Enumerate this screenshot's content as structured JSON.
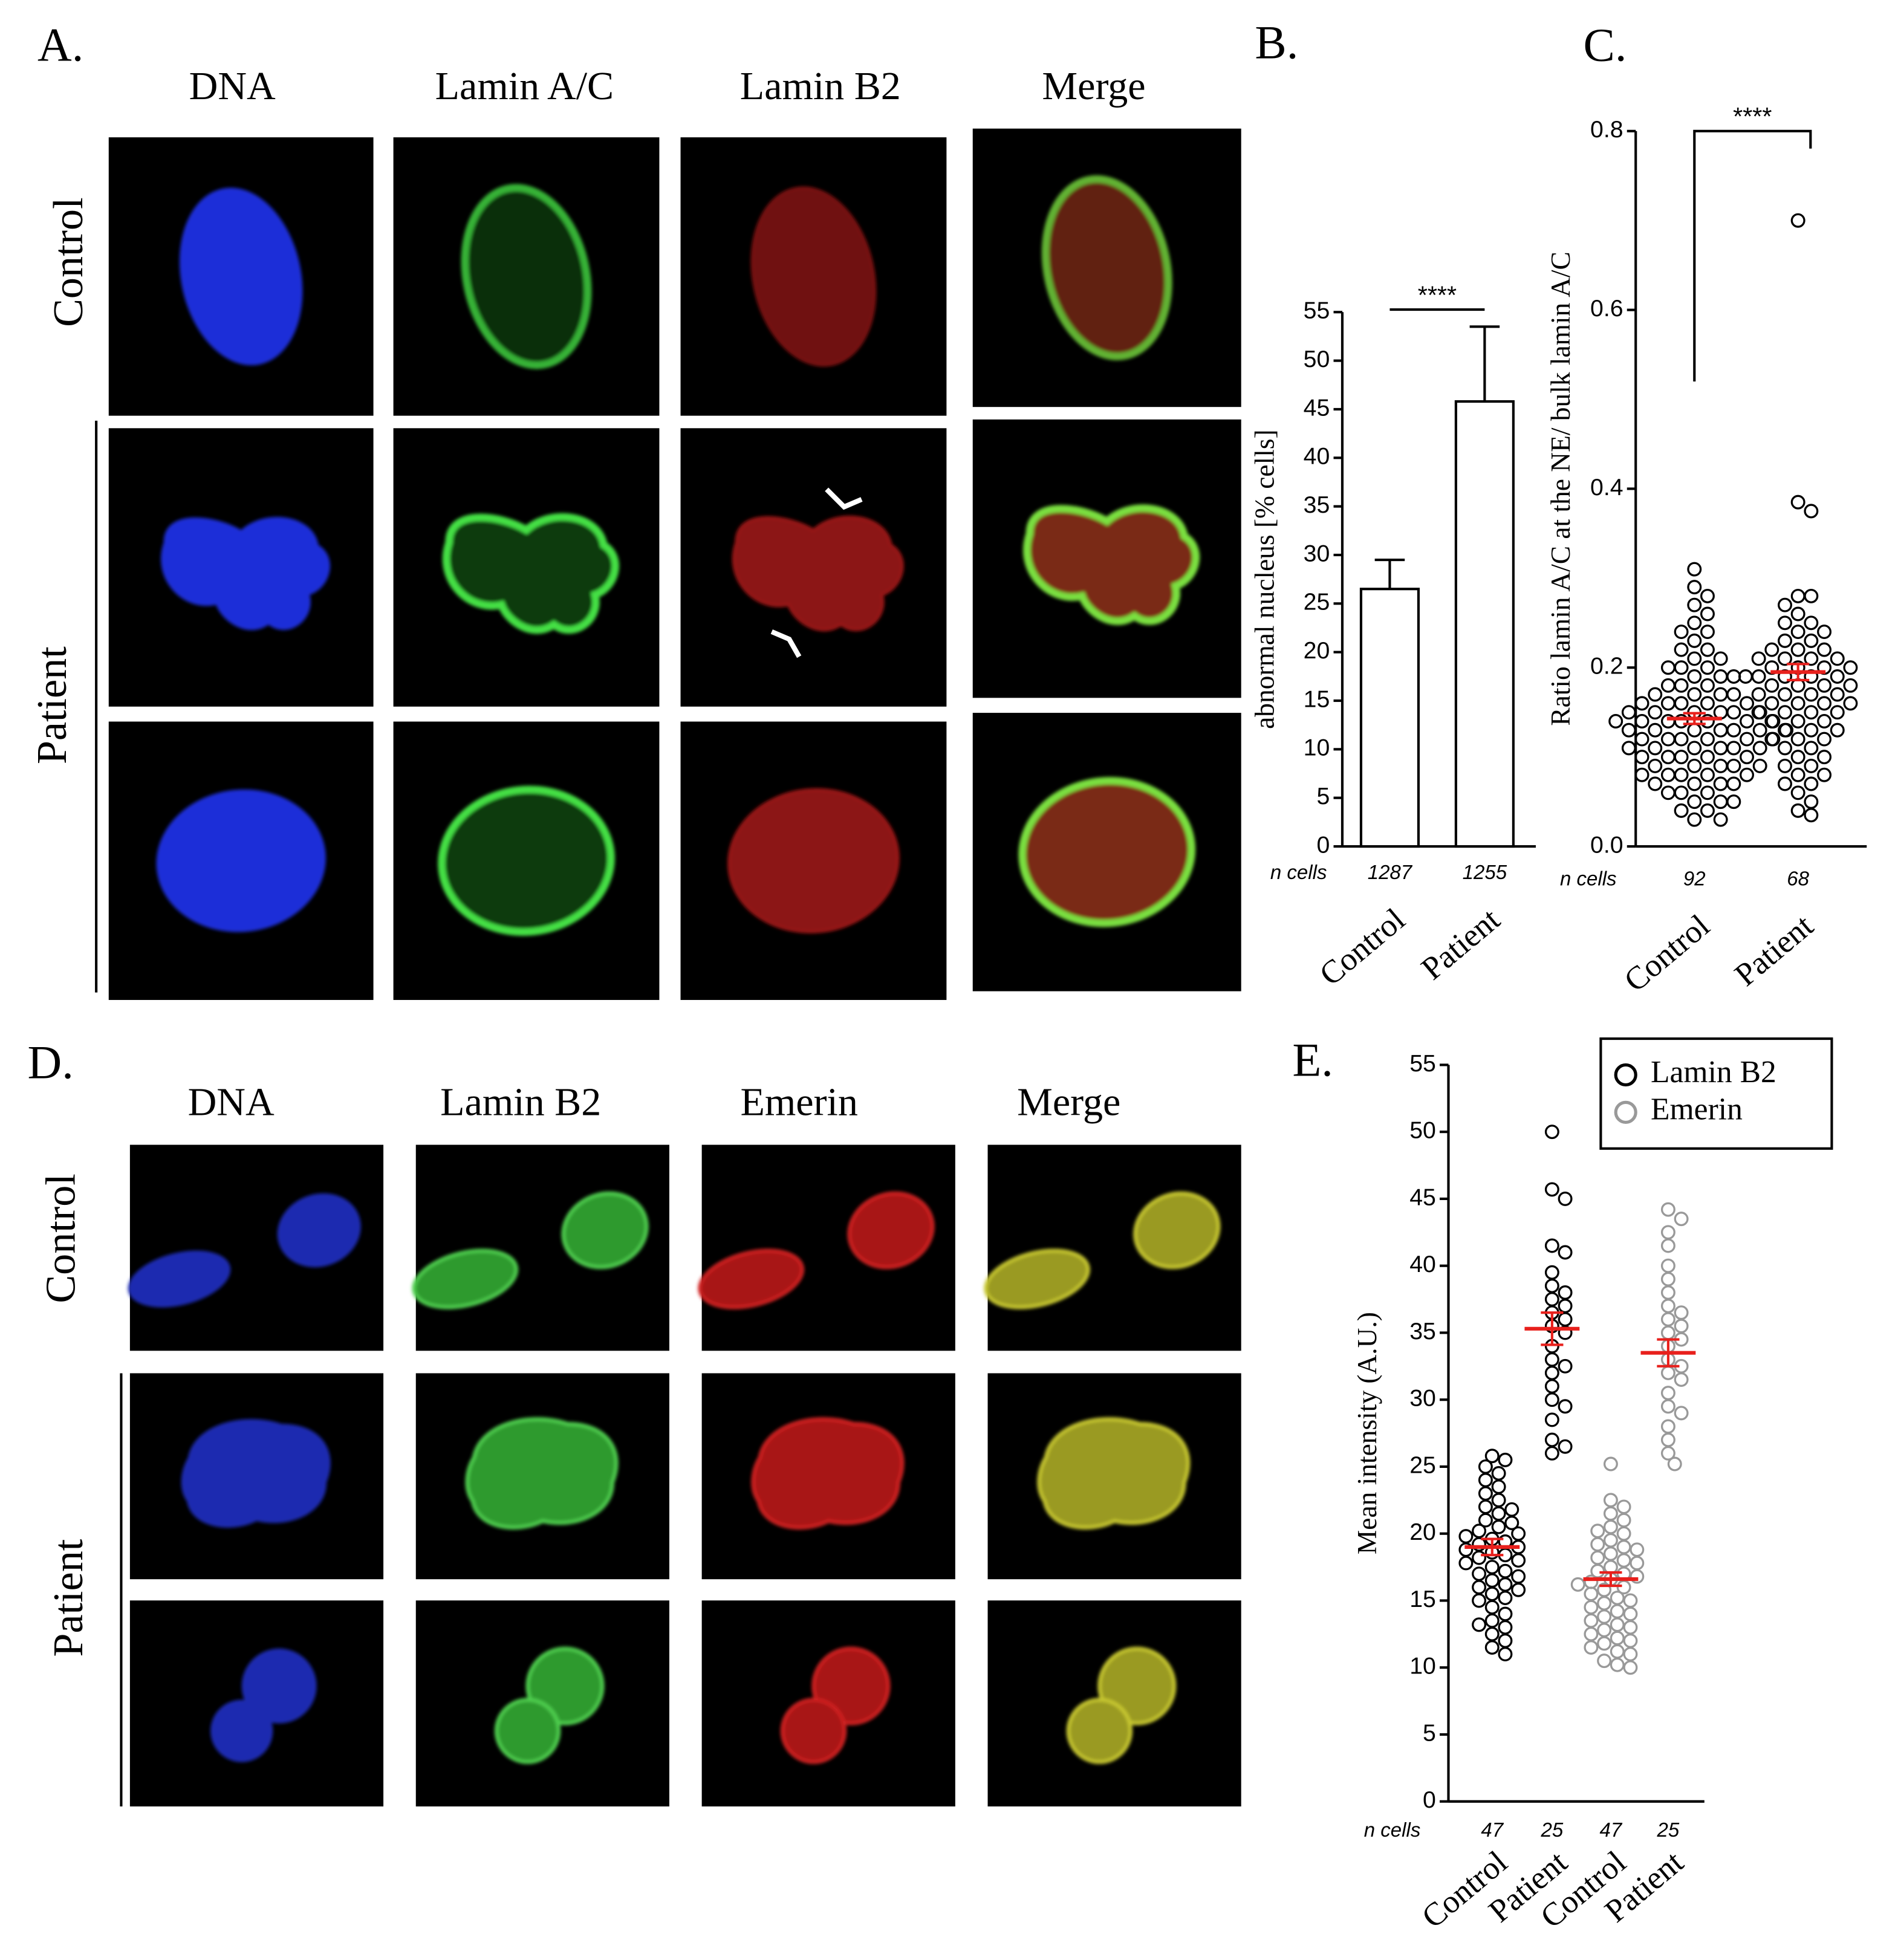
{
  "panel_a": {
    "label": "A.",
    "columns": [
      "DNA",
      "Lamin A/C",
      "Lamin B2",
      "Merge"
    ],
    "rows": [
      "Control",
      "Patient"
    ]
  },
  "panel_d": {
    "label": "D.",
    "columns": [
      "DNA",
      "Lamin B2",
      "Emerin",
      "Merge"
    ],
    "rows": [
      "Control",
      "Patient"
    ]
  },
  "chart_data": [
    {
      "type": "bar",
      "label": "B.",
      "ylabel": "abnormal nucleus [% cells]",
      "categories": [
        "Control",
        "Patient"
      ],
      "values": [
        26.5,
        45.8
      ],
      "errors": [
        3.0,
        7.7
      ],
      "color": "#ffffff",
      "n_label": "n cells",
      "n_cells": [
        1287,
        1255
      ],
      "significance": "****",
      "ylim": [
        0,
        55
      ],
      "yticks": [
        0,
        5,
        10,
        15,
        20,
        25,
        30,
        35,
        40,
        45,
        50,
        55
      ]
    },
    {
      "type": "strip",
      "label": "C.",
      "ylabel": "Ratio lamin A/C at the NE/ bulk lamin  A/C",
      "categories": [
        "Control",
        "Patient"
      ],
      "values": [
        [
          0.31,
          0.29,
          0.28,
          0.27,
          0.26,
          0.25,
          0.24,
          0.24,
          0.23,
          0.22,
          0.22,
          0.21,
          0.21,
          0.2,
          0.2,
          0.2,
          0.19,
          0.19,
          0.19,
          0.18,
          0.18,
          0.18,
          0.17,
          0.17,
          0.17,
          0.17,
          0.16,
          0.16,
          0.16,
          0.16,
          0.16,
          0.15,
          0.15,
          0.15,
          0.15,
          0.15,
          0.15,
          0.14,
          0.14,
          0.14,
          0.14,
          0.14,
          0.14,
          0.14,
          0.13,
          0.13,
          0.13,
          0.13,
          0.13,
          0.13,
          0.13,
          0.12,
          0.12,
          0.12,
          0.12,
          0.12,
          0.12,
          0.11,
          0.11,
          0.11,
          0.11,
          0.11,
          0.11,
          0.1,
          0.1,
          0.1,
          0.1,
          0.1,
          0.09,
          0.09,
          0.09,
          0.09,
          0.09,
          0.08,
          0.08,
          0.08,
          0.08,
          0.08,
          0.07,
          0.07,
          0.07,
          0.07,
          0.06,
          0.06,
          0.06,
          0.05,
          0.05,
          0.05,
          0.04,
          0.04,
          0.03,
          0.03
        ],
        [
          0.7,
          0.385,
          0.375,
          0.28,
          0.28,
          0.27,
          0.26,
          0.25,
          0.25,
          0.24,
          0.24,
          0.23,
          0.23,
          0.22,
          0.22,
          0.22,
          0.21,
          0.21,
          0.21,
          0.21,
          0.2,
          0.2,
          0.2,
          0.2,
          0.19,
          0.19,
          0.19,
          0.19,
          0.19,
          0.18,
          0.18,
          0.18,
          0.18,
          0.17,
          0.17,
          0.17,
          0.17,
          0.16,
          0.16,
          0.16,
          0.16,
          0.15,
          0.15,
          0.15,
          0.15,
          0.14,
          0.14,
          0.14,
          0.13,
          0.13,
          0.13,
          0.12,
          0.12,
          0.12,
          0.11,
          0.11,
          0.1,
          0.1,
          0.09,
          0.09,
          0.08,
          0.08,
          0.07,
          0.07,
          0.06,
          0.05,
          0.04,
          0.035
        ]
      ],
      "means": [
        0.143,
        0.195
      ],
      "sems": [
        0.006,
        0.009
      ],
      "color": "#000000",
      "mean_color": "#e8201c",
      "n_label": "n cells",
      "n_cells": [
        92,
        68
      ],
      "significance": "****",
      "ylim": [
        0,
        0.8
      ],
      "yticks": [
        {
          "value": 0,
          "label": "0.0"
        },
        0.2,
        0.4,
        0.6,
        0.8
      ]
    },
    {
      "type": "strip",
      "label": "E.",
      "ylabel": "Mean intensity (A.U.)",
      "categories": [
        "Control",
        "Patient",
        "Control",
        "Patient"
      ],
      "series": [
        {
          "name": "Lamin B2",
          "color": "#000000",
          "values": [
            [
              25.8,
              25.5,
              25,
              24.5,
              24,
              23.5,
              23,
              22.5,
              22,
              21.8,
              21.5,
              21,
              20.8,
              20.5,
              20.2,
              20,
              19.8,
              19.6,
              19.4,
              19.2,
              19,
              18.8,
              18.6,
              18.4,
              18.2,
              18,
              17.8,
              17.5,
              17.2,
              17,
              16.8,
              16.5,
              16.2,
              16,
              15.8,
              15.5,
              15.2,
              15,
              14.5,
              14,
              13.5,
              13.2,
              13,
              12.5,
              12,
              11.5,
              11
            ],
            [
              50,
              45.7,
              45,
              41.5,
              41,
              39.5,
              38.5,
              38,
              37.5,
              37,
              36.5,
              36,
              35.5,
              35,
              34,
              33,
              32.5,
              32,
              31,
              30,
              29.5,
              28.5,
              27,
              26.5,
              26
            ]
          ],
          "means": [
            19.0,
            35.3
          ],
          "sems": [
            0.6,
            1.2
          ]
        },
        {
          "name": "Emerin",
          "color": "#999999",
          "values": [
            [
              25.2,
              22.5,
              22,
              21.5,
              21,
              20.5,
              20.2,
              20,
              19.5,
              19.2,
              19,
              18.8,
              18.5,
              18.2,
              18,
              17.8,
              17.5,
              17.2,
              17,
              16.8,
              16.6,
              16.4,
              16.2,
              16,
              15.8,
              15.5,
              15.2,
              15,
              14.8,
              14.5,
              14.2,
              14,
              13.8,
              13.5,
              13.2,
              13,
              12.8,
              12.5,
              12.2,
              12,
              11.8,
              11.5,
              11.2,
              11,
              10.5,
              10.2,
              10
            ],
            [
              44.2,
              43.5,
              42.5,
              41.5,
              40,
              39,
              38,
              37,
              36.5,
              36,
              35.5,
              35,
              34.5,
              34,
              33,
              32.5,
              32,
              31.5,
              30.5,
              29.5,
              29,
              28,
              27,
              26,
              25.2
            ]
          ],
          "means": [
            16.6,
            33.5
          ],
          "sems": [
            0.5,
            1.0
          ]
        }
      ],
      "mean_color": "#e8201c",
      "n_label": "n cells",
      "n_cells": [
        47,
        25,
        47,
        25
      ],
      "legend": "upper right",
      "ylim": [
        0,
        55
      ],
      "yticks": [
        0,
        5,
        10,
        15,
        20,
        25,
        30,
        35,
        40,
        45,
        50,
        55
      ]
    }
  ]
}
